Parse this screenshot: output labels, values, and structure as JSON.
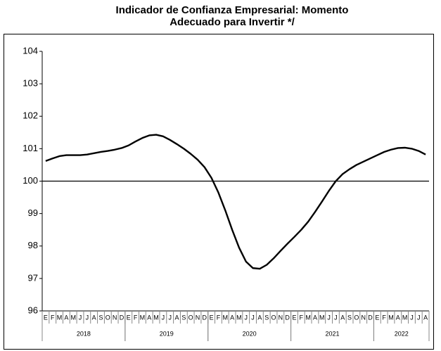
{
  "chart_data": {
    "type": "line",
    "title": "Indicador de Confianza Empresarial: Momento",
    "subtitle": "Adecuado para Invertir */",
    "categories": [
      "E",
      "F",
      "M",
      "A",
      "M",
      "J",
      "J",
      "A",
      "S",
      "O",
      "N",
      "D",
      "E",
      "F",
      "M",
      "A",
      "M",
      "J",
      "J",
      "A",
      "S",
      "O",
      "N",
      "D",
      "E",
      "F",
      "M",
      "A",
      "M",
      "J",
      "J",
      "A",
      "S",
      "O",
      "N",
      "D",
      "E",
      "F",
      "M",
      "A",
      "M",
      "J",
      "J",
      "A",
      "S",
      "O",
      "N",
      "D",
      "E",
      "F",
      "M",
      "A",
      "M",
      "J",
      "J",
      "A"
    ],
    "year_groups": [
      "2018",
      "2019",
      "2020",
      "2021",
      "2022"
    ],
    "series": [
      {
        "name": "Indicador",
        "color": "#000000",
        "values": [
          100.62,
          100.7,
          100.77,
          100.8,
          100.8,
          100.8,
          100.82,
          100.86,
          100.9,
          100.93,
          100.97,
          101.02,
          101.1,
          101.22,
          101.33,
          101.41,
          101.43,
          101.38,
          101.27,
          101.14,
          101.0,
          100.84,
          100.66,
          100.43,
          100.1,
          99.65,
          99.1,
          98.5,
          97.95,
          97.52,
          97.32,
          97.3,
          97.42,
          97.62,
          97.85,
          98.07,
          98.28,
          98.5,
          98.75,
          99.05,
          99.37,
          99.7,
          100.0,
          100.22,
          100.37,
          100.5,
          100.6,
          100.7,
          100.8,
          100.9,
          100.97,
          101.02,
          101.03,
          101.0,
          100.93,
          100.82
        ]
      }
    ],
    "reference_line": 100,
    "ylim": [
      96,
      104
    ],
    "yticks": [
      96,
      97,
      98,
      99,
      100,
      101,
      102,
      103,
      104
    ],
    "grid": false
  }
}
